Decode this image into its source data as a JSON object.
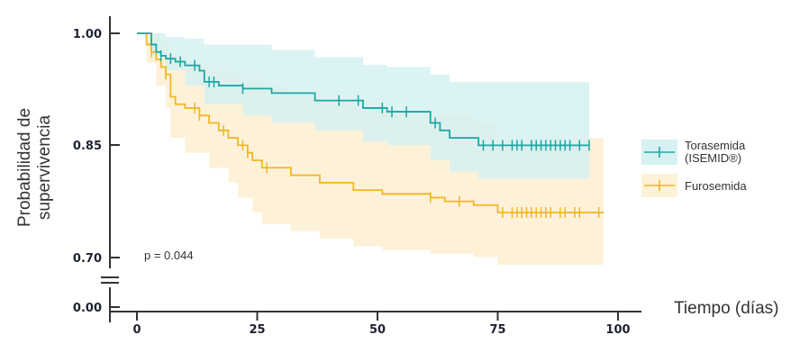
{
  "chart_data": {
    "type": "line",
    "subtype": "kaplan-meier",
    "xlabel": "Tiempo (días)",
    "ylabel_lines": [
      "Probabilidad de",
      "supervivencia"
    ],
    "x_ticks": [
      "0",
      "25",
      "50",
      "75",
      "100"
    ],
    "x_tick_values": [
      0,
      25,
      50,
      75,
      100
    ],
    "y_ticks": [
      "1.00",
      "0.85",
      "0.70",
      "0.00"
    ],
    "xlim": [
      -5,
      105
    ],
    "ylim_upper": [
      0.7,
      1.0
    ],
    "y_axis_break": "between 0.70 and 0.00",
    "annotation": "p = 0.044",
    "legend_position": "right",
    "series": [
      {
        "name_lines": [
          "Torasemida",
          "(ISEMID®)"
        ],
        "color": "#1aa7a3",
        "band_color": "#d6f1f2",
        "steps": [
          [
            0,
            1.0
          ],
          [
            3,
            0.985
          ],
          [
            4,
            0.975
          ],
          [
            5,
            0.97
          ],
          [
            6,
            0.966
          ],
          [
            8,
            0.962
          ],
          [
            10,
            0.957
          ],
          [
            13,
            0.95
          ],
          [
            14,
            0.935
          ],
          [
            17,
            0.93
          ],
          [
            22,
            0.926
          ],
          [
            28,
            0.92
          ],
          [
            37,
            0.91
          ],
          [
            47,
            0.9
          ],
          [
            52,
            0.895
          ],
          [
            61,
            0.88
          ],
          [
            63,
            0.87
          ],
          [
            65,
            0.86
          ],
          [
            71,
            0.85
          ],
          [
            94,
            0.85
          ]
        ],
        "censor_marks": [
          5,
          7,
          9,
          12,
          15,
          16,
          22,
          42,
          46,
          51,
          53,
          56,
          62,
          72,
          74,
          76,
          78,
          79,
          80,
          82,
          83,
          84,
          85,
          86,
          87,
          88,
          89,
          90,
          92,
          94
        ],
        "ci_upper": [
          [
            0,
            1.0
          ],
          [
            3,
            1.0
          ],
          [
            6,
            0.995
          ],
          [
            10,
            0.993
          ],
          [
            14,
            0.985
          ],
          [
            22,
            0.985
          ],
          [
            28,
            0.978
          ],
          [
            37,
            0.968
          ],
          [
            47,
            0.958
          ],
          [
            52,
            0.955
          ],
          [
            61,
            0.945
          ],
          [
            65,
            0.935
          ],
          [
            71,
            0.935
          ],
          [
            94,
            0.935
          ]
        ],
        "ci_lower": [
          [
            0,
            1.0
          ],
          [
            3,
            0.97
          ],
          [
            6,
            0.95
          ],
          [
            10,
            0.93
          ],
          [
            14,
            0.905
          ],
          [
            22,
            0.89
          ],
          [
            28,
            0.88
          ],
          [
            37,
            0.87
          ],
          [
            47,
            0.855
          ],
          [
            52,
            0.85
          ],
          [
            61,
            0.83
          ],
          [
            65,
            0.815
          ],
          [
            71,
            0.805
          ],
          [
            94,
            0.805
          ]
        ]
      },
      {
        "name": "Furosemida",
        "color": "#f2b625",
        "band_color": "#fdf2d8",
        "steps": [
          [
            0,
            1.0
          ],
          [
            2,
            0.985
          ],
          [
            3,
            0.975
          ],
          [
            4,
            0.965
          ],
          [
            5,
            0.955
          ],
          [
            6,
            0.945
          ],
          [
            7,
            0.915
          ],
          [
            8,
            0.905
          ],
          [
            10,
            0.9
          ],
          [
            13,
            0.89
          ],
          [
            15,
            0.88
          ],
          [
            17,
            0.87
          ],
          [
            19,
            0.86
          ],
          [
            21,
            0.85
          ],
          [
            23,
            0.84
          ],
          [
            24,
            0.83
          ],
          [
            26,
            0.82
          ],
          [
            32,
            0.81
          ],
          [
            38,
            0.8
          ],
          [
            45,
            0.79
          ],
          [
            51,
            0.785
          ],
          [
            61,
            0.78
          ],
          [
            64,
            0.775
          ],
          [
            70,
            0.77
          ],
          [
            75,
            0.76
          ],
          [
            97,
            0.76
          ]
        ],
        "censor_marks": [
          3,
          6,
          12,
          13,
          18,
          22,
          23,
          27,
          61,
          67,
          76,
          78,
          79,
          80,
          81,
          82,
          83,
          84,
          85,
          86,
          88,
          89,
          91,
          92,
          96
        ],
        "ci_upper": [
          [
            0,
            1.0
          ],
          [
            3,
            1.0
          ],
          [
            5,
            0.99
          ],
          [
            7,
            0.97
          ],
          [
            10,
            0.96
          ],
          [
            15,
            0.95
          ],
          [
            21,
            0.94
          ],
          [
            26,
            0.93
          ],
          [
            32,
            0.92
          ],
          [
            38,
            0.91
          ],
          [
            45,
            0.9
          ],
          [
            51,
            0.895
          ],
          [
            61,
            0.89
          ],
          [
            70,
            0.88
          ],
          [
            75,
            0.86
          ],
          [
            97,
            0.86
          ]
        ],
        "ci_lower": [
          [
            0,
            1.0
          ],
          [
            2,
            0.96
          ],
          [
            4,
            0.93
          ],
          [
            6,
            0.9
          ],
          [
            7,
            0.86
          ],
          [
            10,
            0.84
          ],
          [
            15,
            0.82
          ],
          [
            19,
            0.8
          ],
          [
            21,
            0.78
          ],
          [
            24,
            0.76
          ],
          [
            26,
            0.745
          ],
          [
            32,
            0.735
          ],
          [
            38,
            0.725
          ],
          [
            45,
            0.715
          ],
          [
            51,
            0.71
          ],
          [
            61,
            0.705
          ],
          [
            70,
            0.7
          ],
          [
            75,
            0.69
          ],
          [
            97,
            0.69
          ]
        ]
      }
    ]
  }
}
